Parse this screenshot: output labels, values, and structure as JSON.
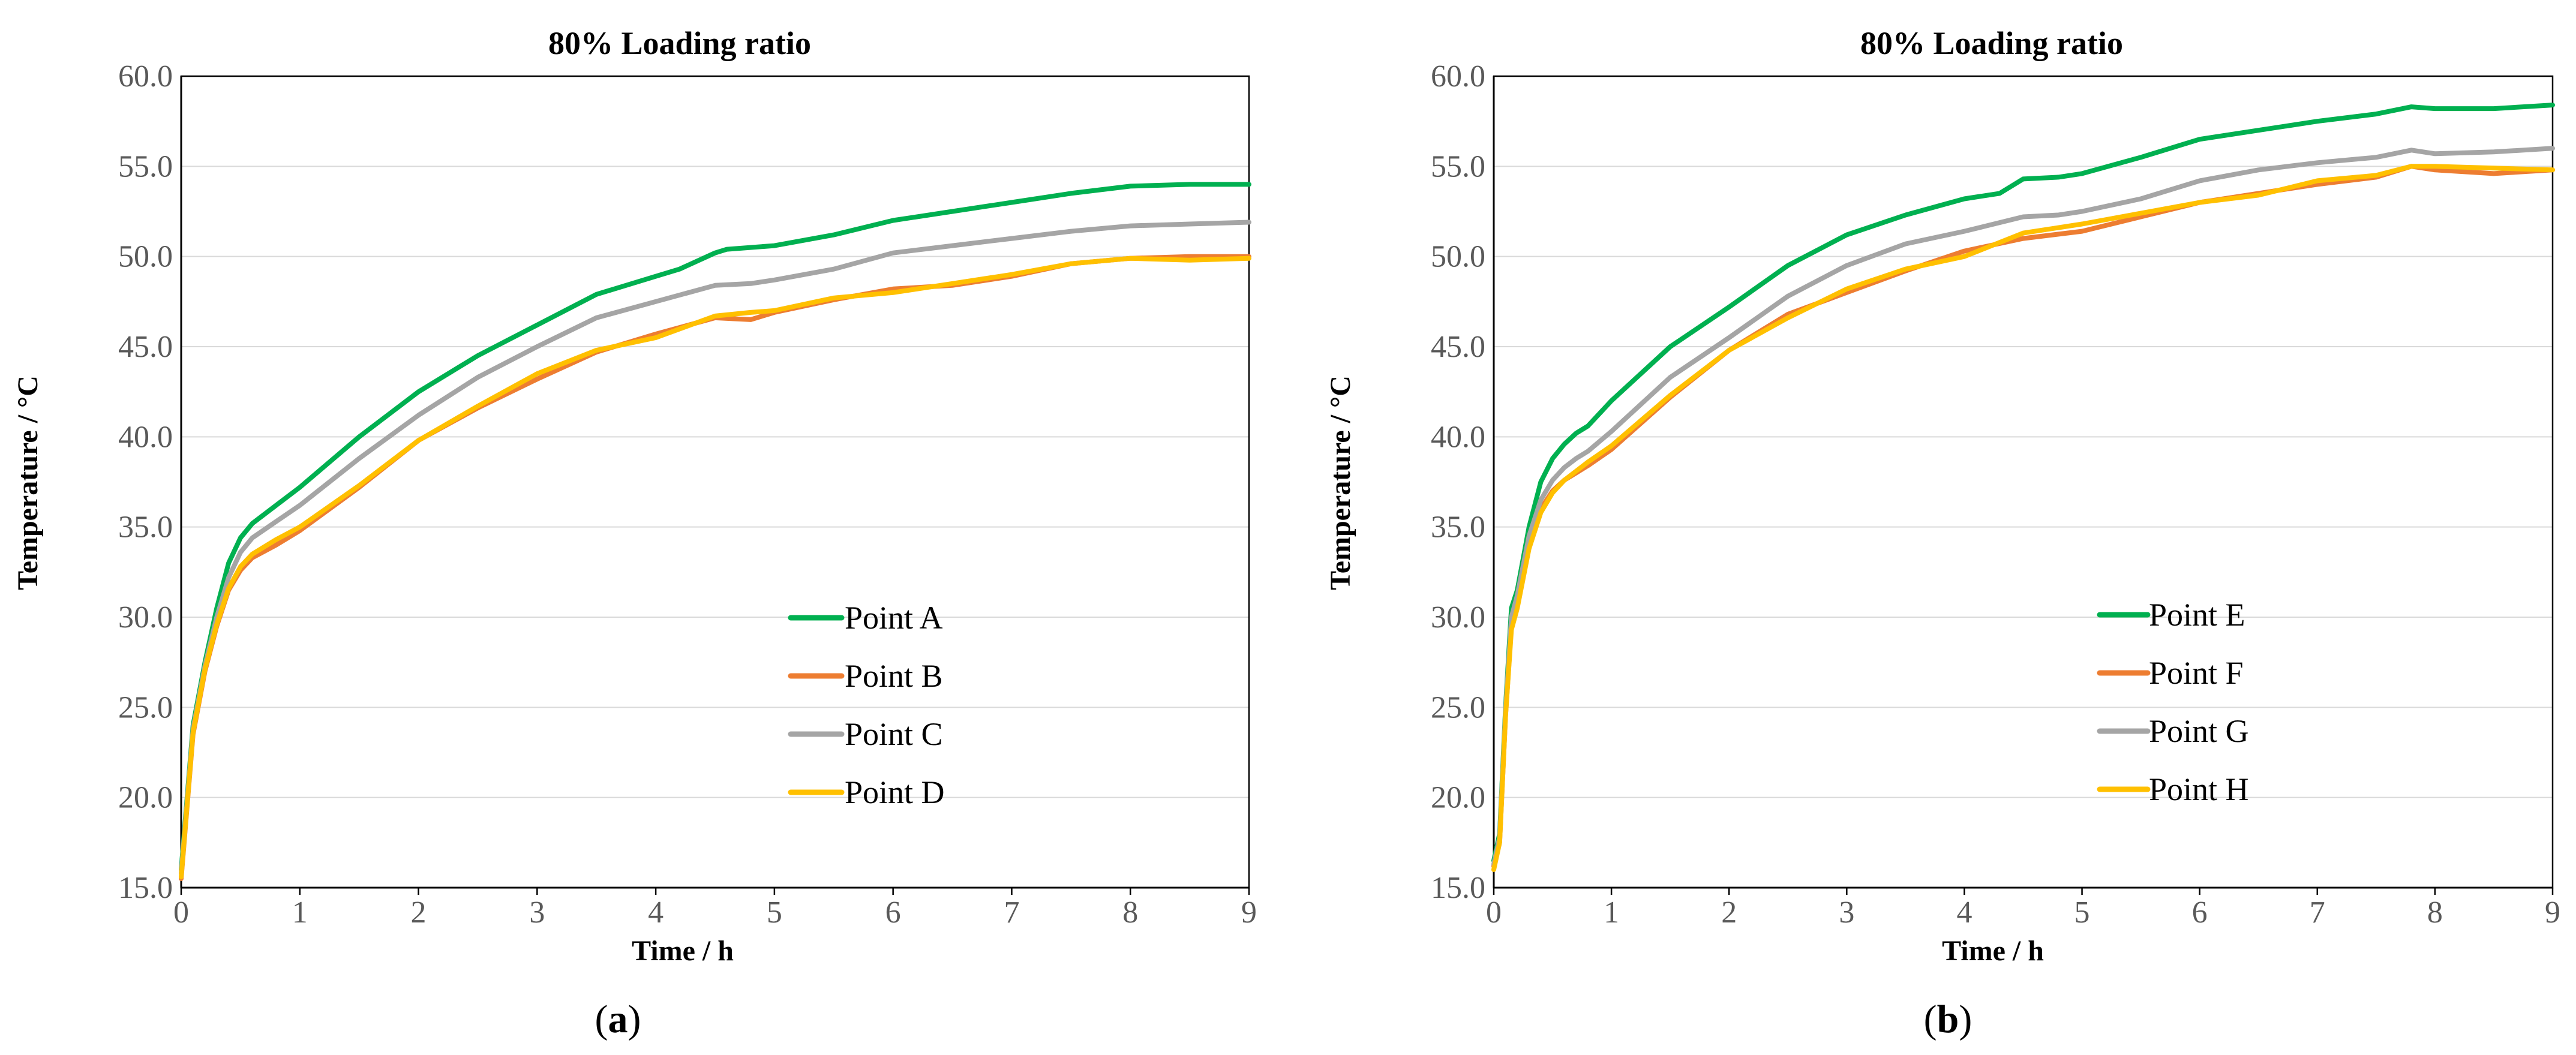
{
  "chart_data": [
    {
      "type": "line",
      "panel": "a",
      "title": "80% Loading ratio",
      "xlabel": "Time / h",
      "ylabel": "Temperature / °C",
      "caption_letter": "a",
      "xlim": [
        0,
        9
      ],
      "ylim": [
        15,
        60
      ],
      "xticks": [
        "0",
        "1",
        "2",
        "3",
        "4",
        "5",
        "6",
        "7",
        "8",
        "9"
      ],
      "yticks": [
        "15.0",
        "20.0",
        "25.0",
        "30.0",
        "35.0",
        "40.0",
        "45.0",
        "50.0",
        "55.0",
        "60.0"
      ],
      "grid": true,
      "legend_position": "bottom-right",
      "series": [
        {
          "name": "Point A",
          "color": "#00b050",
          "x": [
            0,
            0.05,
            0.1,
            0.2,
            0.3,
            0.4,
            0.5,
            0.6,
            0.8,
            1.0,
            1.5,
            2.0,
            2.5,
            3.0,
            3.5,
            4.0,
            4.2,
            4.5,
            4.6,
            5.0,
            5.5,
            6.0,
            6.5,
            7.0,
            7.5,
            8.0,
            8.5,
            9.0
          ],
          "y": [
            16.0,
            20.0,
            24.0,
            27.5,
            30.5,
            33.0,
            34.4,
            35.2,
            36.2,
            37.2,
            40.0,
            42.5,
            44.5,
            46.2,
            47.9,
            48.9,
            49.3,
            50.2,
            50.4,
            50.6,
            51.2,
            52.0,
            52.5,
            53.0,
            53.5,
            53.9,
            54.0,
            54.0
          ]
        },
        {
          "name": "Point B",
          "color": "#ed7d31",
          "x": [
            0,
            0.05,
            0.1,
            0.2,
            0.3,
            0.4,
            0.5,
            0.6,
            0.8,
            1.0,
            1.5,
            2.0,
            2.5,
            3.0,
            3.5,
            4.0,
            4.5,
            4.8,
            5.0,
            5.5,
            6.0,
            6.5,
            7.0,
            7.5,
            8.0,
            8.5,
            9.0
          ],
          "y": [
            15.5,
            19.5,
            23.5,
            27.0,
            29.5,
            31.5,
            32.6,
            33.3,
            34.0,
            34.8,
            37.2,
            39.8,
            41.6,
            43.2,
            44.7,
            45.7,
            46.6,
            46.5,
            46.9,
            47.6,
            48.2,
            48.4,
            48.9,
            49.6,
            49.9,
            50.0,
            50.0
          ]
        },
        {
          "name": "Point C",
          "color": "#a5a5a5",
          "x": [
            0,
            0.05,
            0.1,
            0.2,
            0.3,
            0.4,
            0.5,
            0.6,
            0.8,
            1.0,
            1.5,
            2.0,
            2.5,
            3.0,
            3.5,
            4.0,
            4.5,
            4.8,
            5.0,
            5.5,
            6.0,
            6.5,
            7.0,
            7.5,
            8.0,
            8.5,
            9.0
          ],
          "y": [
            15.8,
            19.8,
            23.8,
            27.3,
            30.0,
            32.2,
            33.6,
            34.4,
            35.3,
            36.2,
            38.8,
            41.2,
            43.3,
            45.0,
            46.6,
            47.5,
            48.4,
            48.5,
            48.7,
            49.3,
            50.2,
            50.6,
            51.0,
            51.4,
            51.7,
            51.8,
            51.9
          ]
        },
        {
          "name": "Point D",
          "color": "#ffc000",
          "x": [
            0,
            0.05,
            0.1,
            0.2,
            0.3,
            0.4,
            0.5,
            0.6,
            0.8,
            1.0,
            1.5,
            2.0,
            2.5,
            3.0,
            3.5,
            4.0,
            4.5,
            4.8,
            5.0,
            5.5,
            6.0,
            6.5,
            7.0,
            7.5,
            8.0,
            8.5,
            9.0
          ],
          "y": [
            15.6,
            19.6,
            23.6,
            27.1,
            29.6,
            31.6,
            32.8,
            33.5,
            34.3,
            35.0,
            37.3,
            39.8,
            41.7,
            43.5,
            44.8,
            45.5,
            46.7,
            46.9,
            47.0,
            47.7,
            48.0,
            48.5,
            49.0,
            49.6,
            49.9,
            49.8,
            49.9
          ]
        }
      ]
    },
    {
      "type": "line",
      "panel": "b",
      "title": "80% Loading ratio",
      "xlabel": "Time / h",
      "ylabel": "Temperature / °C",
      "caption_letter": "b",
      "xlim": [
        0,
        9
      ],
      "ylim": [
        15,
        60
      ],
      "xticks": [
        "0",
        "1",
        "2",
        "3",
        "4",
        "5",
        "6",
        "7",
        "8",
        "9"
      ],
      "yticks": [
        "15.0",
        "20.0",
        "25.0",
        "30.0",
        "35.0",
        "40.0",
        "45.0",
        "50.0",
        "55.0",
        "60.0"
      ],
      "grid": true,
      "legend_position": "bottom-center",
      "series": [
        {
          "name": "Point E",
          "color": "#00b050",
          "x": [
            0,
            0.05,
            0.1,
            0.15,
            0.2,
            0.3,
            0.4,
            0.5,
            0.6,
            0.7,
            0.8,
            1.0,
            1.5,
            2.0,
            2.5,
            3.0,
            3.5,
            4.0,
            4.3,
            4.5,
            4.8,
            5.0,
            5.5,
            6.0,
            6.5,
            7.0,
            7.5,
            7.8,
            8.0,
            8.5,
            9.0
          ],
          "y": [
            16.5,
            18.0,
            25.0,
            30.5,
            31.5,
            35.0,
            37.5,
            38.8,
            39.6,
            40.2,
            40.6,
            42.0,
            45.0,
            47.2,
            49.5,
            51.2,
            52.3,
            53.2,
            53.5,
            54.3,
            54.4,
            54.6,
            55.5,
            56.5,
            57.0,
            57.5,
            57.9,
            58.3,
            58.2,
            58.2,
            58.4
          ]
        },
        {
          "name": "Point F",
          "color": "#ed7d31",
          "x": [
            0,
            0.05,
            0.1,
            0.15,
            0.2,
            0.3,
            0.4,
            0.5,
            0.6,
            0.7,
            0.8,
            1.0,
            1.5,
            2.0,
            2.5,
            3.0,
            3.5,
            4.0,
            4.5,
            5.0,
            5.5,
            6.0,
            6.5,
            7.0,
            7.5,
            7.8,
            8.0,
            8.5,
            9.0
          ],
          "y": [
            16.2,
            17.5,
            24.5,
            29.5,
            30.8,
            34.0,
            36.0,
            37.0,
            37.6,
            38.0,
            38.4,
            39.3,
            42.2,
            44.8,
            46.8,
            48.0,
            49.2,
            50.3,
            51.0,
            51.4,
            52.2,
            53.0,
            53.5,
            54.0,
            54.4,
            55.0,
            54.8,
            54.6,
            54.8
          ]
        },
        {
          "name": "Point G",
          "color": "#a5a5a5",
          "x": [
            0,
            0.05,
            0.1,
            0.15,
            0.2,
            0.3,
            0.4,
            0.5,
            0.6,
            0.7,
            0.8,
            1.0,
            1.5,
            2.0,
            2.5,
            3.0,
            3.5,
            4.0,
            4.5,
            4.8,
            5.0,
            5.5,
            6.0,
            6.5,
            7.0,
            7.5,
            7.8,
            8.0,
            8.5,
            9.0
          ],
          "y": [
            16.3,
            17.8,
            24.8,
            30.0,
            31.2,
            34.5,
            36.5,
            37.6,
            38.3,
            38.8,
            39.2,
            40.3,
            43.3,
            45.5,
            47.8,
            49.5,
            50.7,
            51.4,
            52.2,
            52.3,
            52.5,
            53.2,
            54.2,
            54.8,
            55.2,
            55.5,
            55.9,
            55.7,
            55.8,
            56.0
          ]
        },
        {
          "name": "Point H",
          "color": "#ffc000",
          "x": [
            0,
            0.05,
            0.1,
            0.15,
            0.2,
            0.3,
            0.4,
            0.5,
            0.6,
            0.7,
            0.8,
            1.0,
            1.5,
            2.0,
            2.5,
            3.0,
            3.5,
            4.0,
            4.5,
            5.0,
            5.5,
            6.0,
            6.5,
            7.0,
            7.5,
            7.8,
            8.0,
            8.5,
            9.0
          ],
          "y": [
            16.0,
            17.5,
            24.5,
            29.3,
            30.5,
            33.8,
            35.8,
            36.9,
            37.6,
            38.1,
            38.6,
            39.5,
            42.3,
            44.8,
            46.6,
            48.2,
            49.3,
            50.0,
            51.3,
            51.8,
            52.4,
            53.0,
            53.4,
            54.2,
            54.5,
            55.0,
            55.0,
            54.9,
            54.8
          ]
        }
      ]
    }
  ]
}
